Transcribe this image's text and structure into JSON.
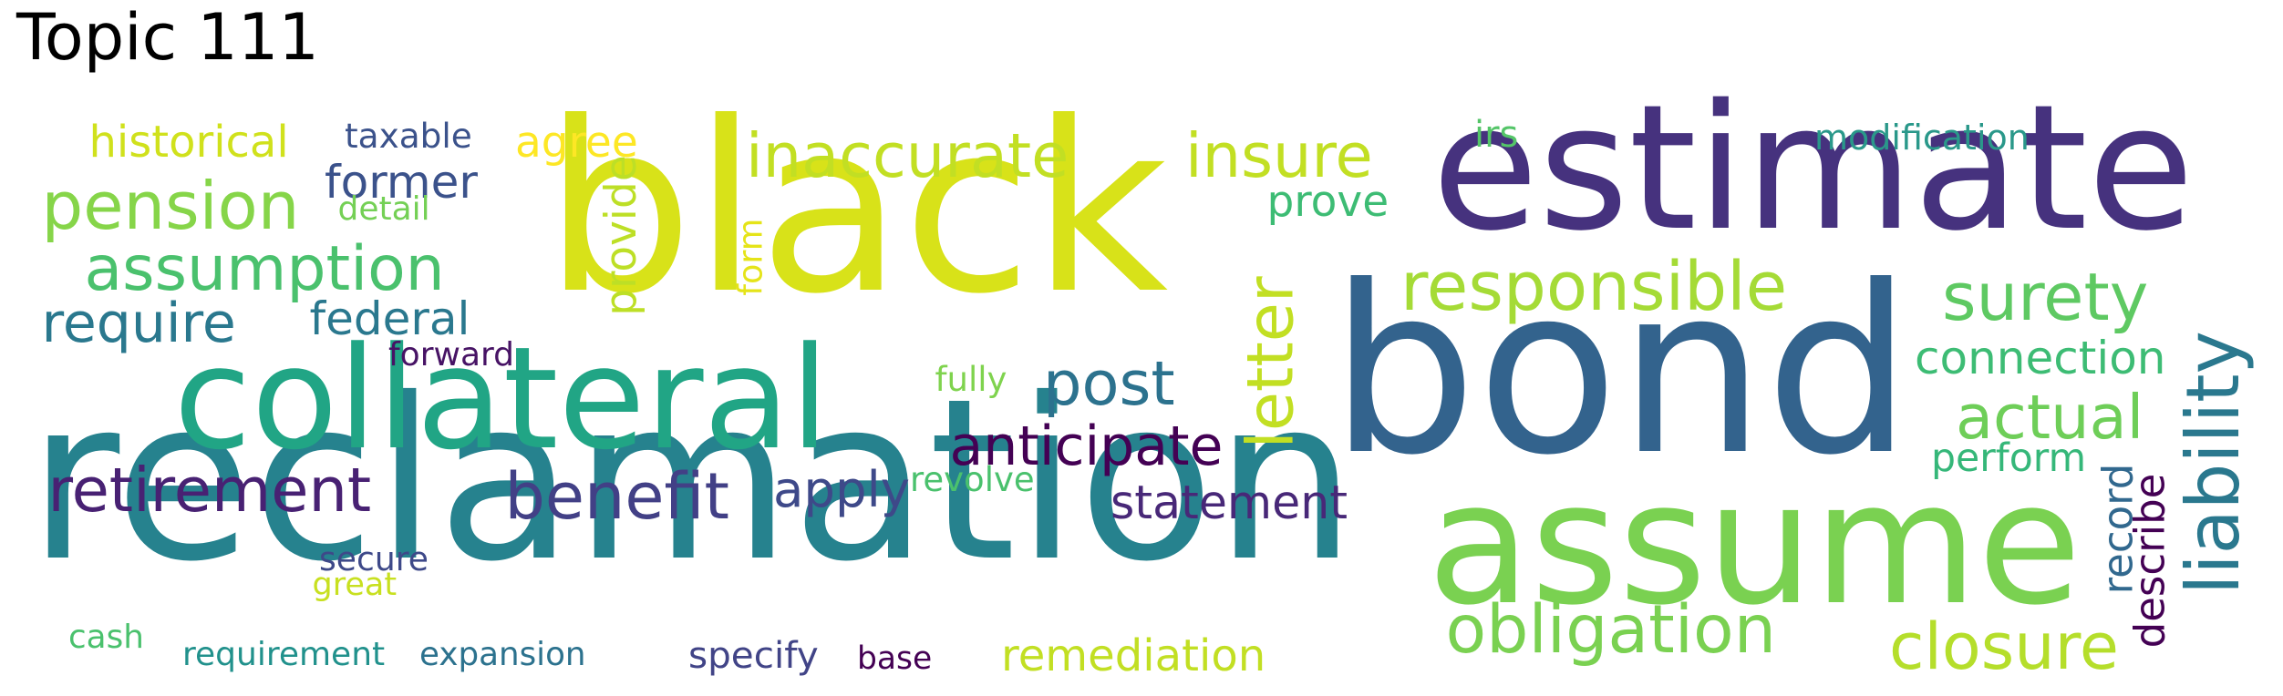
{
  "title": "Topic 111",
  "words": [
    {
      "text": "black",
      "color": "#d8e219"
    },
    {
      "text": "estimate",
      "color": "#46327e"
    },
    {
      "text": "bond",
      "color": "#33638d"
    },
    {
      "text": "reclamation",
      "color": "#26828e"
    },
    {
      "text": "assume",
      "color": "#7ad151"
    },
    {
      "text": "collateral",
      "color": "#21a585"
    },
    {
      "text": "inaccurate",
      "color": "#c2df23"
    },
    {
      "text": "insure",
      "color": "#c2df23"
    },
    {
      "text": "responsible",
      "color": "#a5db36"
    },
    {
      "text": "surety",
      "color": "#5ec962"
    },
    {
      "text": "pension",
      "color": "#86d549"
    },
    {
      "text": "assumption",
      "color": "#4ac16d"
    },
    {
      "text": "historical",
      "color": "#d0e11c"
    },
    {
      "text": "retirement",
      "color": "#482173"
    },
    {
      "text": "benefit",
      "color": "#424086"
    },
    {
      "text": "obligation",
      "color": "#7ad151"
    },
    {
      "text": "closure",
      "color": "#b5de2b"
    },
    {
      "text": "actual",
      "color": "#6ece58"
    },
    {
      "text": "liability",
      "color": "#2a788e"
    },
    {
      "text": "letter",
      "color": "#c2df23"
    },
    {
      "text": "post",
      "color": "#2c728e"
    },
    {
      "text": "anticipate",
      "color": "#440154"
    },
    {
      "text": "require",
      "color": "#2a788e"
    },
    {
      "text": "former",
      "color": "#3b528b"
    },
    {
      "text": "federal",
      "color": "#2a788e"
    },
    {
      "text": "connection",
      "color": "#3dbc74"
    },
    {
      "text": "statement",
      "color": "#482878"
    },
    {
      "text": "apply",
      "color": "#3e4989"
    },
    {
      "text": "remediation",
      "color": "#c2df23"
    },
    {
      "text": "agree",
      "color": "#fde725"
    },
    {
      "text": "prove",
      "color": "#3dbc74"
    },
    {
      "text": "provide",
      "color": "#bddf26"
    },
    {
      "text": "record",
      "color": "#31688e"
    },
    {
      "text": "describe",
      "color": "#440154"
    },
    {
      "text": "perform",
      "color": "#35b779"
    },
    {
      "text": "modification",
      "color": "#2a988a"
    },
    {
      "text": "taxable",
      "color": "#3b528b"
    },
    {
      "text": "detail",
      "color": "#74d055"
    },
    {
      "text": "forward",
      "color": "#471365"
    },
    {
      "text": "fully",
      "color": "#7fd34e"
    },
    {
      "text": "revolve",
      "color": "#4ac16d"
    },
    {
      "text": "secure",
      "color": "#3e4989"
    },
    {
      "text": "great",
      "color": "#c8e020"
    },
    {
      "text": "cash",
      "color": "#4ac16d"
    },
    {
      "text": "requirement",
      "color": "#21918c"
    },
    {
      "text": "expansion",
      "color": "#2c728e"
    },
    {
      "text": "specify",
      "color": "#414487"
    },
    {
      "text": "base",
      "color": "#440154"
    },
    {
      "text": "form",
      "color": "#e5e419"
    },
    {
      "text": "irs",
      "color": "#54c568"
    }
  ]
}
